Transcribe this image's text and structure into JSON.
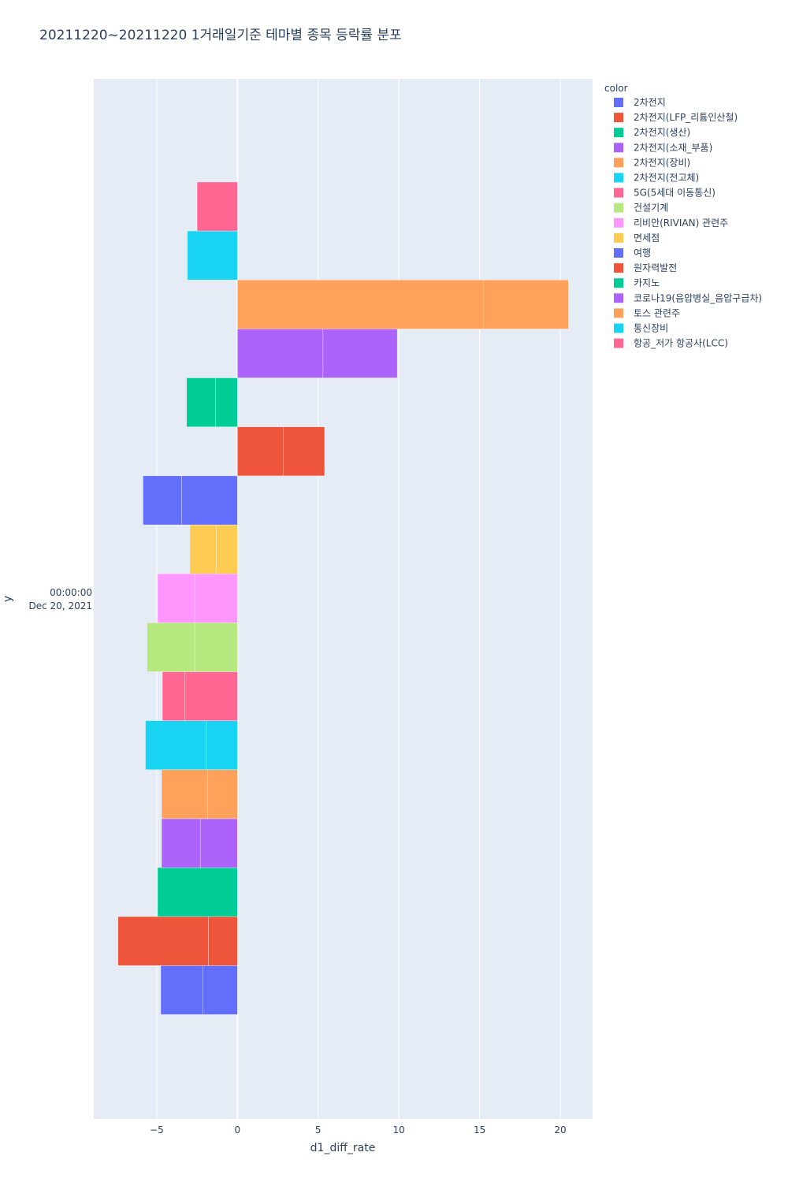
{
  "chart_data": {
    "type": "bar",
    "orientation": "horizontal",
    "barmode": "relative",
    "title": "20211220~20211220 1거래일기준 테마별 종목 등락률 분포",
    "xlabel": "d1_diff_rate",
    "ylabel": "y",
    "y_tick_line1": "00:00:00",
    "y_tick_line2": "Dec 20, 2021",
    "xlim": [
      -8.9,
      22.0
    ],
    "x_ticks": [
      -5,
      0,
      5,
      10,
      15,
      20
    ],
    "x_tick_labels": [
      "−5",
      "0",
      "5",
      "10",
      "15",
      "20"
    ],
    "grid": true,
    "legend_title": "color",
    "legend_position": "right",
    "series": [
      {
        "name": "2차전지",
        "color": "#636efa",
        "segments": [
          -2.15,
          -2.6
        ]
      },
      {
        "name": "2차전지(LFP_리튬인산철)",
        "color": "#EF553B",
        "segments": [
          -1.8,
          -5.6
        ]
      },
      {
        "name": "2차전지(생산)",
        "color": "#00cc96",
        "segments": [
          -4.95
        ]
      },
      {
        "name": "2차전지(소재_부품)",
        "color": "#ab63fa",
        "segments": [
          -2.3,
          -2.4
        ]
      },
      {
        "name": "2차전지(장비)",
        "color": "#FFA15A",
        "segments": [
          -1.85,
          -2.85
        ]
      },
      {
        "name": "2차전지(전고체)",
        "color": "#19d3f3",
        "segments": [
          -1.95,
          -3.75
        ]
      },
      {
        "name": "5G(5세대 이동통신)",
        "color": "#FF6692",
        "segments": [
          -3.25,
          -1.4
        ]
      },
      {
        "name": "건설기계",
        "color": "#B6E880",
        "segments": [
          -2.65,
          -2.95
        ]
      },
      {
        "name": "리비안(RIVIAN) 관련주",
        "color": "#FF97FF",
        "segments": [
          -2.65,
          -2.3
        ]
      },
      {
        "name": "면세점",
        "color": "#FECB52",
        "segments": [
          -1.3,
          -1.65
        ]
      },
      {
        "name": "여행",
        "color": "#636efa",
        "segments": [
          -3.45,
          -2.4
        ]
      },
      {
        "name": "원자력발전",
        "color": "#EF553B",
        "segments": [
          2.85,
          2.55
        ]
      },
      {
        "name": "카지노",
        "color": "#00cc96",
        "segments": [
          -1.35,
          -1.8
        ]
      },
      {
        "name": "코로나19(음압병실_음압구급차)",
        "color": "#ab63fa",
        "segments": [
          5.3,
          4.6
        ]
      },
      {
        "name": "토스 관련주",
        "color": "#FFA15A",
        "segments": [
          15.25,
          5.25
        ]
      },
      {
        "name": "통신장비",
        "color": "#19d3f3",
        "segments": [
          -3.1
        ]
      },
      {
        "name": "항공_저가 항공사(LCC)",
        "color": "#FF6692",
        "segments": [
          -2.5
        ]
      }
    ]
  }
}
